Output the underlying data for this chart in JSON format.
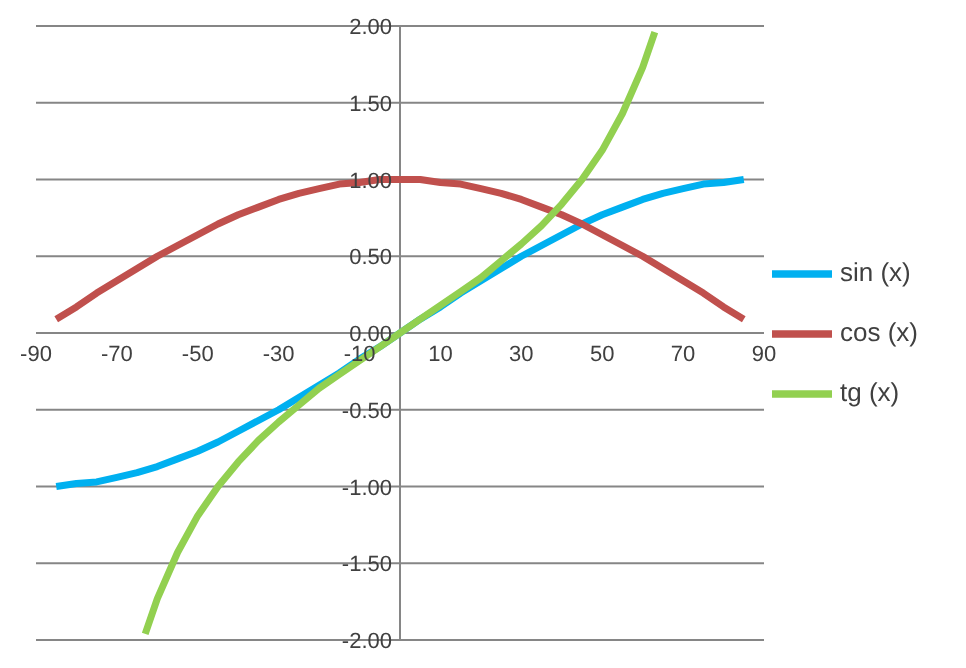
{
  "chart_data": {
    "type": "line",
    "x": [
      -85,
      -80,
      -75,
      -70,
      -65,
      -60,
      -55,
      -50,
      -45,
      -40,
      -35,
      -30,
      -25,
      -20,
      -15,
      -10,
      -5,
      0,
      5,
      10,
      15,
      20,
      25,
      30,
      35,
      40,
      45,
      50,
      55,
      60,
      65,
      70,
      75,
      80,
      85
    ],
    "series": [
      {
        "name": "sin (x)",
        "color": "#00b0f0",
        "values": [
          -1.0,
          -0.98,
          -0.97,
          -0.94,
          -0.91,
          -0.87,
          -0.82,
          -0.77,
          -0.71,
          -0.64,
          -0.57,
          -0.5,
          -0.42,
          -0.34,
          -0.26,
          -0.17,
          -0.09,
          0,
          0.09,
          0.17,
          0.26,
          0.34,
          0.42,
          0.5,
          0.57,
          0.64,
          0.71,
          0.77,
          0.82,
          0.87,
          0.91,
          0.94,
          0.97,
          0.98,
          1.0
        ]
      },
      {
        "name": "cos (x)",
        "color": "#c0504d",
        "values": [
          0.09,
          0.17,
          0.26,
          0.34,
          0.42,
          0.5,
          0.57,
          0.64,
          0.71,
          0.77,
          0.82,
          0.87,
          0.91,
          0.94,
          0.97,
          0.98,
          1.0,
          1.0,
          1.0,
          0.98,
          0.97,
          0.94,
          0.91,
          0.87,
          0.82,
          0.77,
          0.71,
          0.64,
          0.57,
          0.5,
          0.42,
          0.34,
          0.26,
          0.17,
          0.09
        ]
      },
      {
        "name": "tg (x)",
        "color": "#92d050",
        "x": [
          -63,
          -60,
          -55,
          -50,
          -45,
          -40,
          -35,
          -30,
          -25,
          -20,
          -15,
          -10,
          -5,
          0,
          5,
          10,
          15,
          20,
          25,
          30,
          35,
          40,
          45,
          50,
          55,
          60,
          63
        ],
        "values": [
          -1.96,
          -1.73,
          -1.43,
          -1.19,
          -1.0,
          -0.84,
          -0.7,
          -0.58,
          -0.47,
          -0.36,
          -0.27,
          -0.18,
          -0.09,
          0,
          0.09,
          0.18,
          0.27,
          0.36,
          0.47,
          0.58,
          0.7,
          0.84,
          1.0,
          1.19,
          1.43,
          1.73,
          1.96
        ]
      }
    ],
    "xlim": [
      -90,
      90
    ],
    "xticks": [
      -90,
      -70,
      -50,
      -30,
      -10,
      10,
      30,
      50,
      70,
      90
    ],
    "ylim": [
      -2,
      2
    ],
    "yticks": [
      {
        "value": -2,
        "label": "-2.00"
      },
      {
        "value": -1.5,
        "label": "-1.50"
      },
      {
        "value": -1,
        "label": "-1.00"
      },
      {
        "value": -0.5,
        "label": "-0.50"
      },
      {
        "value": 0,
        "label": "0.00"
      },
      {
        "value": 0.5,
        "label": "0.50"
      },
      {
        "value": 1,
        "label": "1.00"
      },
      {
        "value": 1.5,
        "label": "1.50"
      },
      {
        "value": 2,
        "label": "2.00"
      }
    ],
    "grid": "y",
    "legend": "right",
    "line_style": "solid",
    "marker": "none"
  }
}
